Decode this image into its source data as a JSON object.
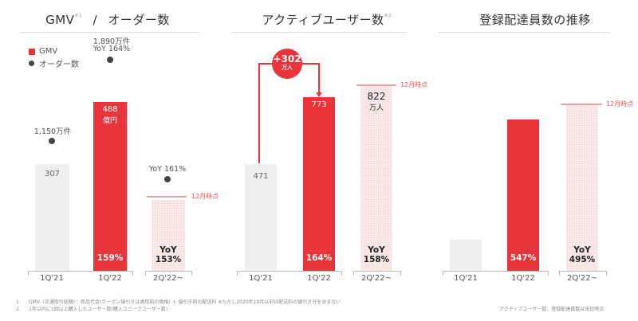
{
  "colors": {
    "accent_red": "#e8343a",
    "gray_bar": "#efefef",
    "pink_bar": "#fbeaea",
    "marker_line": "#e9a3a6",
    "marker_text": "#e05a5f",
    "dot": "#444444"
  },
  "chart_data": [
    {
      "type": "bar",
      "title": "GMV",
      "title_sup": "※1",
      "title_separator": "/",
      "title_suffix": "オーダー数",
      "legend": [
        {
          "label": "GMV",
          "marker": "red-square"
        },
        {
          "label": "オーダー数",
          "marker": "dark-dot"
        }
      ],
      "categories": [
        "1Q'21",
        "1Q'22",
        "2Q'22~"
      ],
      "series": [
        {
          "name": "GMV",
          "values": [
            307,
            488,
            null
          ],
          "unit": "億円"
        },
        {
          "name": "オーダー数",
          "values": [
            1150,
            1890,
            null
          ],
          "unit": "万件"
        }
      ],
      "bar_labels": [
        "307",
        "488",
        ""
      ],
      "bar_label_units": [
        "",
        "億円",
        ""
      ],
      "bar_bottom_labels": [
        "",
        "159%",
        "YoY\n153%"
      ],
      "order_labels": [
        "1,150万件",
        "1,890万件\nYoY 164%",
        "YoY 161%"
      ],
      "projection_label": "12月時点"
    },
    {
      "type": "bar",
      "title": "アクティブユーザー数",
      "title_sup": "※2",
      "categories": [
        "1Q'21",
        "1Q'22",
        "2Q'22~"
      ],
      "values": [
        471,
        773,
        822
      ],
      "unit": "万人",
      "bar_labels": [
        "471",
        "773",
        "822"
      ],
      "bar_label_units": [
        "",
        "",
        "万人"
      ],
      "bar_bottom_labels": [
        "",
        "164%",
        "YoY\n158%"
      ],
      "delta_bubble": {
        "value": "+302",
        "unit": "万人"
      },
      "projection_label": "12月時点"
    },
    {
      "type": "bar",
      "title": "登録配達員数の推移",
      "categories": [
        "1Q'21",
        "1Q'22",
        "2Q'22~"
      ],
      "relative_values": [
        1.0,
        5.47,
        6.37
      ],
      "bar_bottom_labels": [
        "",
        "547%",
        "YoY\n495%"
      ],
      "projection_label": "12月時点"
    }
  ],
  "footnotes": [
    {
      "num": "1.",
      "text": "GMV（流通取引総額）：商品代金(クーポン値引きは適用前の価格) ＋ 値引き前の配送料 ※ただし2020年10月以前は配送料の値引き分を含まない"
    },
    {
      "num": "2.",
      "text": "1年以内に1回以上購入したユーザー数(購入ユニークユーザー数)"
    }
  ],
  "footnote_right": "アクティブユーザー数、登録配達員数は末日時点"
}
